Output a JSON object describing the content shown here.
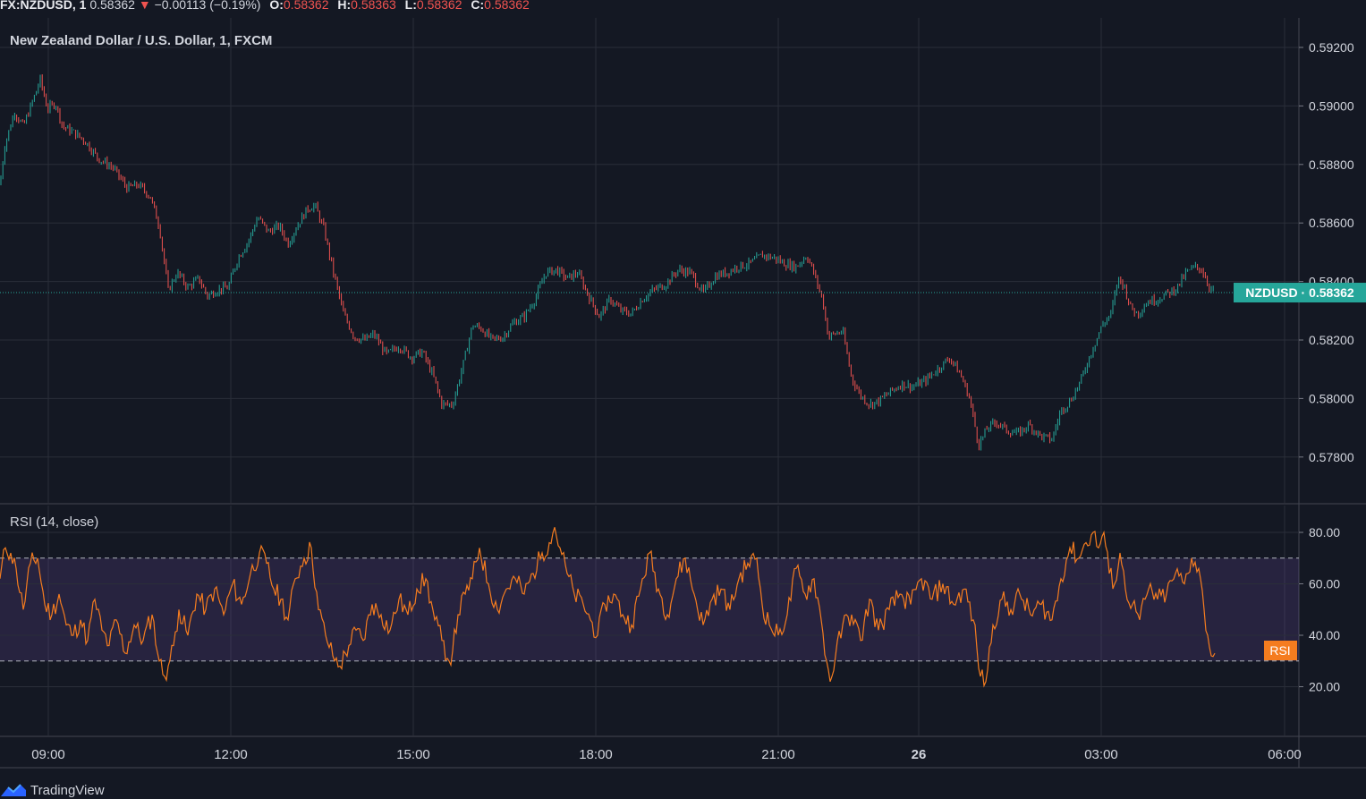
{
  "topbar": {
    "symbol": "FX:NZDUSD, 1",
    "last": "0.58362",
    "direction_glyph": "▼",
    "change": "−0.00113 (−0.19%)",
    "o_label": "O:",
    "o": "0.58362",
    "h_label": "H:",
    "h": "0.58363",
    "l_label": "L:",
    "l": "0.58362",
    "c_label": "C:",
    "c": "0.58362"
  },
  "title": "New Zealand Dollar / U.S. Dollar, 1, FXCM",
  "rsi_title": "RSI (14, close)",
  "footer": {
    "brand": "TradingView"
  },
  "colors": {
    "background": "#141823",
    "up": "#26a69a",
    "down": "#ef5350",
    "rsi_line": "#f57c1f",
    "rsi_band": "#7e57c2",
    "price_badge": "#26a69a",
    "rsi_badge": "#f57c1f"
  },
  "chart_data": [
    {
      "type": "candlestick",
      "symbol": "NZDUSD",
      "interval": "1",
      "title": "New Zealand Dollar / U.S. Dollar, 1, FXCM",
      "last_price": 0.58362,
      "last_price_label": "NZDUSD · 0.58362",
      "y_ticks": [
        "0.59200",
        "0.59000",
        "0.58800",
        "0.58600",
        "0.58400",
        "0.58200",
        "0.58000",
        "0.57800"
      ],
      "ylim": [
        0.5763,
        0.5931
      ],
      "x_ticks": [
        "09:00",
        "12:00",
        "15:00",
        "18:00",
        "21:00",
        "26",
        "03:00",
        "06:00"
      ],
      "grid": true,
      "close_path": {
        "x": [
          0,
          5,
          16,
          26,
          37,
          45,
          53,
          62,
          70,
          82,
          95,
          110,
          126,
          142,
          155,
          168,
          178,
          188,
          198,
          210,
          222,
          232,
          242,
          255,
          266,
          278,
          288,
          300,
          312,
          322,
          332,
          344,
          352,
          362,
          372,
          384,
          396,
          408,
          418,
          432,
          446,
          460,
          472,
          484,
          494,
          506,
          518,
          528,
          538,
          550,
          562,
          574,
          586,
          598,
          610,
          622,
          634,
          646,
          658,
          670,
          682,
          694,
          706,
          718,
          730,
          744,
          758,
          772,
          786,
          800,
          812,
          824,
          838,
          852,
          866,
          878,
          890,
          902,
          912,
          920,
          926,
          932,
          942,
          952,
          962,
          972,
          982,
          994,
          1008,
          1020,
          1034,
          1048,
          1062,
          1074,
          1084,
          1094,
          1104,
          1114,
          1126,
          1138,
          1150,
          1164,
          1176,
          1186,
          1196,
          1208,
          1220,
          1232,
          1242,
          1250,
          1256,
          1264,
          1272,
          1282,
          1294,
          1306,
          1316,
          1326,
          1336,
          1344,
          1352,
          1358
        ],
        "y": [
          0.5873,
          0.5886,
          0.5898,
          0.5893,
          0.5902,
          0.5909,
          0.5899,
          0.5901,
          0.5893,
          0.5891,
          0.5888,
          0.5882,
          0.5879,
          0.5872,
          0.5873,
          0.5869,
          0.5859,
          0.5837,
          0.5843,
          0.5838,
          0.5841,
          0.5835,
          0.5837,
          0.5838,
          0.5848,
          0.5854,
          0.5862,
          0.5857,
          0.5859,
          0.5853,
          0.5859,
          0.5865,
          0.5866,
          0.5858,
          0.5844,
          0.5829,
          0.5821,
          0.582,
          0.5822,
          0.5815,
          0.5818,
          0.5814,
          0.5816,
          0.5808,
          0.5798,
          0.5798,
          0.5812,
          0.5825,
          0.5824,
          0.582,
          0.5821,
          0.5826,
          0.5828,
          0.5834,
          0.5843,
          0.5844,
          0.5841,
          0.5843,
          0.5835,
          0.5828,
          0.5834,
          0.583,
          0.5829,
          0.5834,
          0.5837,
          0.5839,
          0.5844,
          0.5843,
          0.5836,
          0.5842,
          0.5843,
          0.5845,
          0.5846,
          0.5849,
          0.5848,
          0.5846,
          0.5845,
          0.5849,
          0.5841,
          0.5833,
          0.5821,
          0.5822,
          0.5823,
          0.5807,
          0.5801,
          0.5798,
          0.5799,
          0.5802,
          0.5805,
          0.5804,
          0.5806,
          0.581,
          0.5814,
          0.5808,
          0.58,
          0.5784,
          0.579,
          0.5792,
          0.5789,
          0.5788,
          0.5791,
          0.5787,
          0.5786,
          0.5796,
          0.5799,
          0.5806,
          0.5816,
          0.5825,
          0.5829,
          0.5841,
          0.5839,
          0.5831,
          0.5829,
          0.5833,
          0.5834,
          0.5836,
          0.5838,
          0.5843,
          0.5845,
          0.5844,
          0.5838,
          0.58362
        ]
      }
    },
    {
      "type": "line",
      "name": "RSI (14, close)",
      "y_ticks": [
        "80.00",
        "60.00",
        "40.00",
        "20.00"
      ],
      "ylim": [
        0,
        100
      ],
      "levels": [
        70,
        30
      ],
      "band": [
        30,
        70
      ],
      "last_label": "RSI",
      "x": [
        0,
        6,
        12,
        18,
        26,
        34,
        42,
        50,
        58,
        66,
        74,
        82,
        90,
        98,
        106,
        114,
        122,
        130,
        140,
        150,
        160,
        170,
        178,
        184,
        188,
        194,
        200,
        210,
        220,
        230,
        240,
        250,
        260,
        270,
        280,
        290,
        298,
        306,
        314,
        322,
        330,
        340,
        348,
        356,
        364,
        372,
        380,
        390,
        398,
        406,
        416,
        426,
        436,
        446,
        456,
        466,
        476,
        486,
        494,
        502,
        506,
        512,
        520,
        528,
        536,
        546,
        556,
        566,
        576,
        586,
        596,
        606,
        614,
        620,
        626,
        634,
        642,
        652,
        660,
        668,
        676,
        686,
        696,
        706,
        716,
        726,
        736,
        746,
        756,
        766,
        776,
        786,
        796,
        806,
        816,
        826,
        836,
        846,
        852,
        860,
        870,
        880,
        890,
        900,
        910,
        918,
        924,
        928,
        934,
        942,
        952,
        962,
        972,
        982,
        994,
        1006,
        1018,
        1030,
        1042,
        1054,
        1066,
        1078,
        1088,
        1096,
        1102,
        1110,
        1120,
        1130,
        1140,
        1152,
        1164,
        1176,
        1186,
        1196,
        1206,
        1214,
        1222,
        1228,
        1234,
        1240,
        1246,
        1252,
        1258,
        1266,
        1274,
        1284,
        1294,
        1304,
        1314,
        1324,
        1332,
        1340,
        1346,
        1350,
        1354,
        1358
      ],
      "values": [
        62,
        74,
        72,
        66,
        50,
        68,
        70,
        52,
        48,
        56,
        44,
        40,
        46,
        38,
        54,
        42,
        36,
        46,
        33,
        44,
        38,
        48,
        30,
        24,
        28,
        36,
        50,
        40,
        56,
        50,
        58,
        48,
        60,
        52,
        64,
        72,
        68,
        58,
        54,
        46,
        62,
        70,
        74,
        50,
        40,
        32,
        28,
        36,
        42,
        38,
        52,
        48,
        42,
        54,
        48,
        58,
        62,
        46,
        38,
        30,
        34,
        48,
        56,
        62,
        74,
        60,
        50,
        58,
        62,
        56,
        64,
        72,
        76,
        82,
        74,
        64,
        56,
        52,
        46,
        40,
        52,
        56,
        48,
        44,
        58,
        72,
        58,
        48,
        62,
        70,
        56,
        44,
        54,
        58,
        50,
        62,
        68,
        70,
        52,
        44,
        40,
        48,
        66,
        56,
        62,
        46,
        30,
        22,
        32,
        44,
        48,
        38,
        54,
        42,
        50,
        56,
        52,
        62,
        54,
        60,
        52,
        58,
        46,
        24,
        22,
        44,
        54,
        50,
        56,
        48,
        52,
        46,
        62,
        74,
        70,
        76,
        80,
        74,
        80,
        64,
        60,
        72,
        58,
        52,
        46,
        58,
        54,
        56,
        64,
        60,
        70,
        66,
        50,
        40,
        32,
        33
      ]
    }
  ],
  "time_ticks": [
    {
      "label": "09:00",
      "bold": false
    },
    {
      "label": "12:00",
      "bold": false
    },
    {
      "label": "15:00",
      "bold": false
    },
    {
      "label": "18:00",
      "bold": false
    },
    {
      "label": "21:00",
      "bold": false
    },
    {
      "label": "26",
      "bold": true
    },
    {
      "label": "03:00",
      "bold": false
    },
    {
      "label": "06:00",
      "bold": false
    }
  ]
}
